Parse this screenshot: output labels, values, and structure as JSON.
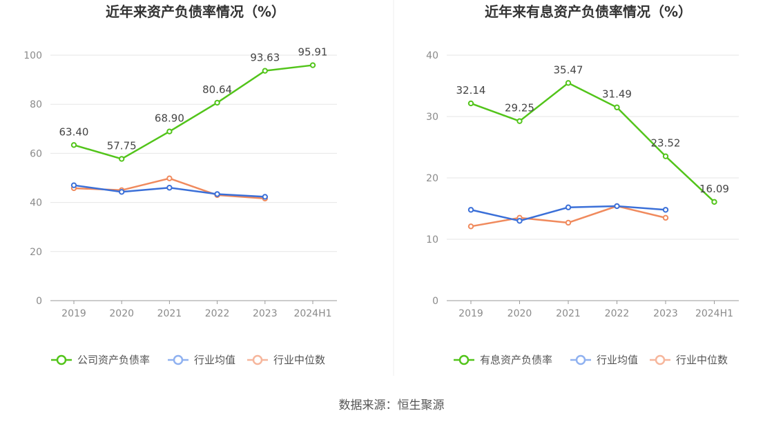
{
  "source_label": "数据来源：恒生聚源",
  "colors": {
    "company": "#52c41a",
    "avg": "#3a6fd8",
    "median": "#f08a5d",
    "avg_legend": "#8fb1f0",
    "median_legend": "#f6b69c"
  },
  "chart_data": [
    {
      "type": "line",
      "title": "近年来资产负债率情况（%）",
      "categories": [
        "2019",
        "2020",
        "2021",
        "2022",
        "2023",
        "2024H1"
      ],
      "ylim": [
        0,
        100
      ],
      "yticks": [
        0,
        20,
        40,
        60,
        80,
        100
      ],
      "grid": true,
      "legend_position": "bottom",
      "series": [
        {
          "name": "公司资产负债率",
          "color_key": "company",
          "values": [
            63.4,
            57.75,
            68.9,
            80.64,
            93.63,
            95.91
          ],
          "labels": [
            "63.40",
            "57.75",
            "68.90",
            "80.64",
            "93.63",
            "95.91"
          ]
        },
        {
          "name": "行业均值",
          "color_key": "avg",
          "values": [
            47.0,
            44.3,
            46.0,
            43.4,
            42.3,
            null
          ]
        },
        {
          "name": "行业中位数",
          "color_key": "median",
          "values": [
            45.8,
            45.0,
            49.8,
            43.0,
            41.6,
            null
          ]
        }
      ]
    },
    {
      "type": "line",
      "title": "近年来有息资产负债率情况（%）",
      "categories": [
        "2019",
        "2020",
        "2021",
        "2022",
        "2023",
        "2024H1"
      ],
      "ylim": [
        0,
        40
      ],
      "yticks": [
        0,
        10,
        20,
        30,
        40
      ],
      "grid": true,
      "legend_position": "bottom",
      "series": [
        {
          "name": "有息资产负债率",
          "color_key": "company",
          "values": [
            32.14,
            29.25,
            35.47,
            31.49,
            23.52,
            16.09
          ],
          "labels": [
            "32.14",
            "29.25",
            "35.47",
            "31.49",
            "23.52",
            "16.09"
          ]
        },
        {
          "name": "行业均值",
          "color_key": "avg",
          "values": [
            14.8,
            13.0,
            15.2,
            15.4,
            14.8,
            null
          ]
        },
        {
          "name": "行业中位数",
          "color_key": "median",
          "values": [
            12.1,
            13.5,
            12.7,
            15.4,
            13.5,
            null
          ]
        }
      ]
    }
  ]
}
